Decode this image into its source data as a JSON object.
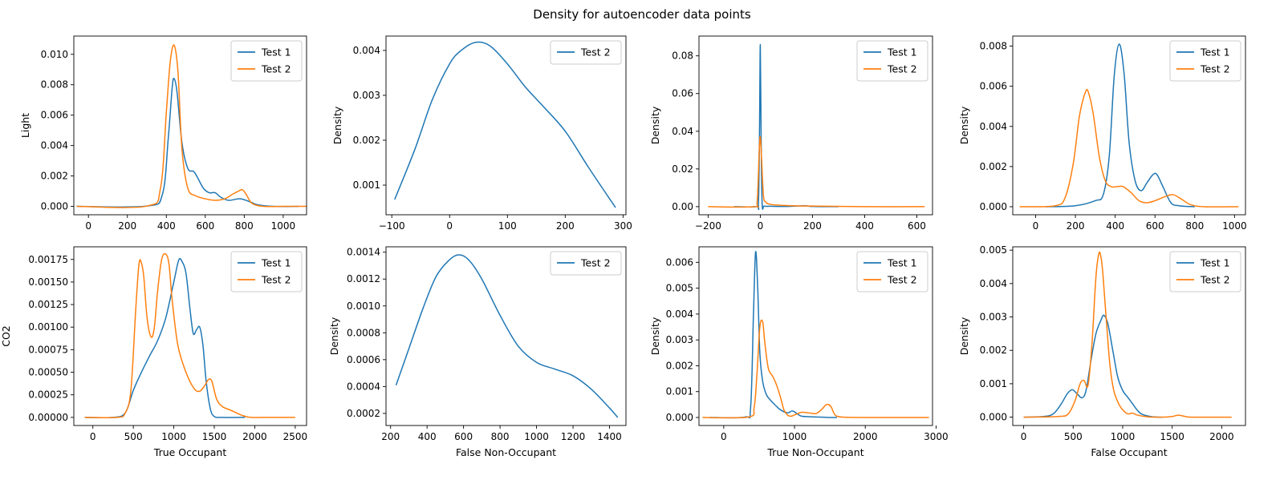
{
  "figure": {
    "title": "Density for autoencoder data points",
    "colors": {
      "test1": "#1f77b4",
      "test2": "#ff7f0e"
    }
  },
  "chart_data": [
    {
      "type": "line",
      "xlabel": "",
      "ylabel": "Light",
      "xlim": [
        -75,
        1120
      ],
      "ylim": [
        -0.00055,
        0.0112
      ],
      "xticks": [
        0,
        200,
        400,
        600,
        800,
        1000
      ],
      "yticks": [
        0.0,
        0.002,
        0.004,
        0.006,
        0.008,
        0.01
      ],
      "ytick_labels": [
        "0.000",
        "0.002",
        "0.004",
        "0.006",
        "0.008",
        "0.010"
      ],
      "legend": "top-right",
      "series": [
        {
          "name": "Test 1",
          "color": "#1f77b4",
          "x": [
            -60,
            300,
            380,
            410,
            430,
            440,
            455,
            480,
            510,
            540,
            560,
            590,
            620,
            650,
            680,
            720,
            780,
            830,
            870,
            950,
            1080
          ],
          "y": [
            0,
            2e-05,
            0.0008,
            0.0045,
            0.0078,
            0.0084,
            0.0075,
            0.0042,
            0.0025,
            0.0023,
            0.0019,
            0.0012,
            0.0009,
            0.0009,
            0.0006,
            0.0004,
            0.0005,
            0.0003,
            0.0001,
            0,
            0
          ]
        },
        {
          "name": "Test 2",
          "color": "#ff7f0e",
          "x": [
            -60,
            300,
            370,
            400,
            420,
            440,
            460,
            480,
            510,
            550,
            600,
            650,
            700,
            740,
            770,
            790,
            810,
            840,
            900,
            1000,
            1120
          ],
          "y": [
            0,
            2e-05,
            0.0012,
            0.0062,
            0.0095,
            0.0106,
            0.0088,
            0.0038,
            0.0012,
            0.0007,
            0.0005,
            0.0004,
            0.0005,
            0.0008,
            0.001,
            0.0011,
            0.0008,
            0.0002,
            0,
            0,
            0
          ]
        }
      ]
    },
    {
      "type": "line",
      "xlabel": "",
      "ylabel": "Density",
      "xlim": [
        -110,
        305
      ],
      "ylim": [
        0.00034,
        0.00432
      ],
      "xticks": [
        -100,
        0,
        100,
        200,
        300
      ],
      "yticks": [
        0.001,
        0.002,
        0.003,
        0.004
      ],
      "ytick_labels": [
        "0.001",
        "0.002",
        "0.003",
        "0.004"
      ],
      "legend": "top-right",
      "series": [
        {
          "name": "Test 2",
          "color": "#1f77b4",
          "x": [
            -95,
            -60,
            -30,
            0,
            20,
            45,
            70,
            100,
            130,
            160,
            200,
            240,
            287
          ],
          "y": [
            0.00068,
            0.0018,
            0.0029,
            0.0037,
            0.004,
            0.00418,
            0.0041,
            0.0037,
            0.0032,
            0.00278,
            0.0022,
            0.0014,
            0.0005
          ]
        }
      ]
    },
    {
      "type": "line",
      "xlabel": "",
      "ylabel": "Density",
      "xlim": [
        -235,
        660
      ],
      "ylim": [
        -0.0043,
        0.0905
      ],
      "xticks": [
        -200,
        0,
        200,
        400,
        600
      ],
      "yticks": [
        0.0,
        0.02,
        0.04,
        0.06,
        0.08
      ],
      "ytick_labels": [
        "0.00",
        "0.02",
        "0.04",
        "0.06",
        "0.08"
      ],
      "legend": "top-right",
      "series": [
        {
          "name": "Test 1",
          "color": "#1f77b4",
          "x": [
            -100,
            -15,
            -7,
            -3,
            0,
            3,
            7,
            15,
            40,
            100,
            170,
            200,
            300
          ],
          "y": [
            0,
            0,
            0.002,
            0.04,
            0.086,
            0.04,
            0.002,
            0.0003,
            0.0002,
            0.0001,
            0.0005,
            0.0001,
            0
          ]
        },
        {
          "name": "Test 2",
          "color": "#ff7f0e",
          "x": [
            -200,
            -25,
            -12,
            -4,
            0,
            5,
            12,
            20,
            40,
            100,
            200,
            400,
            630
          ],
          "y": [
            0,
            0,
            0.003,
            0.03,
            0.037,
            0.025,
            0.006,
            0.0025,
            0.0012,
            0.0006,
            0.0003,
            0,
            0
          ]
        }
      ]
    },
    {
      "type": "line",
      "xlabel": "",
      "ylabel": "Density",
      "xlim": [
        -115,
        1055
      ],
      "ylim": [
        -0.0004,
        0.0085
      ],
      "xticks": [
        0,
        200,
        400,
        600,
        800,
        1000
      ],
      "yticks": [
        0.0,
        0.002,
        0.004,
        0.006,
        0.008
      ],
      "ytick_labels": [
        "0.000",
        "0.002",
        "0.004",
        "0.006",
        "0.008"
      ],
      "legend": "top-right",
      "series": [
        {
          "name": "Test 1",
          "color": "#1f77b4",
          "x": [
            50,
            200,
            300,
            340,
            370,
            395,
            420,
            445,
            470,
            500,
            530,
            560,
            590,
            610,
            640,
            680,
            720,
            800
          ],
          "y": [
            0,
            5e-05,
            0.0003,
            0.0006,
            0.0025,
            0.0065,
            0.0081,
            0.0066,
            0.0032,
            0.0013,
            0.0008,
            0.0012,
            0.0016,
            0.0016,
            0.001,
            0.0002,
            5e-05,
            0
          ]
        },
        {
          "name": "Test 2",
          "color": "#ff7f0e",
          "x": [
            -80,
            100,
            150,
            190,
            220,
            250,
            265,
            290,
            320,
            350,
            380,
            410,
            440,
            480,
            520,
            560,
            600,
            650,
            690,
            730,
            780,
            850,
            1020
          ],
          "y": [
            0,
            5e-05,
            0.0005,
            0.0022,
            0.0045,
            0.0057,
            0.0057,
            0.0046,
            0.0025,
            0.0013,
            0.001,
            0.001,
            0.001,
            0.0007,
            0.0003,
            0.0002,
            0.0003,
            0.0005,
            0.0006,
            0.0004,
            0.0001,
            0,
            0
          ]
        }
      ]
    },
    {
      "type": "line",
      "xlabel": "True Occupant",
      "ylabel": "CO2",
      "xlim": [
        -235,
        2640
      ],
      "ylim": [
        -9e-05,
        0.00189
      ],
      "xticks": [
        0,
        500,
        1000,
        1500,
        2000,
        2500
      ],
      "yticks": [
        0,
        0.00025,
        0.0005,
        0.00075,
        0.001,
        0.00125,
        0.0015,
        0.00175
      ],
      "ytick_labels": [
        "0.00000",
        "0.00025",
        "0.00050",
        "0.00075",
        "0.00100",
        "0.00125",
        "0.00150",
        "0.00175"
      ],
      "legend": "top-right",
      "series": [
        {
          "name": "Test 1",
          "color": "#1f77b4",
          "x": [
            -100,
            250,
            400,
            500,
            600,
            700,
            800,
            900,
            1000,
            1060,
            1100,
            1150,
            1200,
            1240,
            1280,
            1320,
            1360,
            1400,
            1450,
            1500,
            1600,
            1880
          ],
          "y": [
            0,
            0,
            5e-05,
            0.0003,
            0.0005,
            0.00068,
            0.00085,
            0.0011,
            0.0015,
            0.00174,
            0.00173,
            0.0016,
            0.0012,
            0.00093,
            0.00097,
            0.001,
            0.0008,
            0.0004,
            0.0001,
            1e-05,
            0,
            0
          ]
        },
        {
          "name": "Test 2",
          "color": "#ff7f0e",
          "x": [
            -100,
            300,
            400,
            470,
            530,
            570,
            600,
            630,
            670,
            720,
            760,
            800,
            850,
            900,
            940,
            980,
            1050,
            1150,
            1250,
            1320,
            1380,
            1430,
            1470,
            1530,
            1600,
            1700,
            1850,
            1950,
            2100,
            2500
          ],
          "y": [
            0,
            0,
            5e-05,
            0.0003,
            0.0012,
            0.0017,
            0.00171,
            0.00155,
            0.0011,
            0.00089,
            0.001,
            0.0014,
            0.00175,
            0.00181,
            0.0017,
            0.0013,
            0.0008,
            0.0005,
            0.00032,
            0.00029,
            0.00035,
            0.00042,
            0.0004,
            0.0002,
            0.00012,
            8e-05,
            2e-05,
            0,
            0,
            0
          ]
        }
      ]
    },
    {
      "type": "line",
      "xlabel": "False Non-Occupant",
      "ylabel": "Density",
      "xlim": [
        175,
        1490
      ],
      "ylim": [
        0.00011,
        0.00144
      ],
      "xticks": [
        200,
        400,
        600,
        800,
        1000,
        1200,
        1400
      ],
      "yticks": [
        0.0002,
        0.0004,
        0.0006,
        0.0008,
        0.001,
        0.0012,
        0.0014
      ],
      "ytick_labels": [
        "0.0002",
        "0.0004",
        "0.0006",
        "0.0008",
        "0.0010",
        "0.0012",
        "0.0014"
      ],
      "legend": "top-right",
      "series": [
        {
          "name": "Test 2",
          "color": "#1f77b4",
          "x": [
            230,
            300,
            380,
            450,
            520,
            575,
            630,
            700,
            800,
            900,
            1000,
            1100,
            1200,
            1300,
            1400,
            1445
          ],
          "y": [
            0.00041,
            0.00068,
            0.00099,
            0.00122,
            0.00134,
            0.00138,
            0.00134,
            0.0012,
            0.00093,
            0.0007,
            0.00058,
            0.00053,
            0.00048,
            0.00038,
            0.00024,
            0.00017
          ]
        }
      ]
    },
    {
      "type": "line",
      "xlabel": "True Non-Occupant",
      "ylabel": "Density",
      "xlim": [
        -350,
        2950
      ],
      "ylim": [
        -0.00031,
        0.0066
      ],
      "xticks": [
        0,
        1000,
        2000,
        3000
      ],
      "yticks": [
        0,
        0.001,
        0.002,
        0.003,
        0.004,
        0.005,
        0.006
      ],
      "ytick_labels": [
        "0.000",
        "0.001",
        "0.002",
        "0.003",
        "0.004",
        "0.005",
        "0.006"
      ],
      "legend": "top-right",
      "series": [
        {
          "name": "Test 1",
          "color": "#1f77b4",
          "x": [
            -200,
            300,
            380,
            420,
            450,
            480,
            510,
            550,
            600,
            650,
            720,
            800,
            900,
            960,
            1000,
            1050,
            1100,
            1200,
            1300,
            1400,
            1500,
            1600
          ],
          "y": [
            0,
            2e-05,
            0.0004,
            0.004,
            0.0064,
            0.005,
            0.0025,
            0.0014,
            0.0009,
            0.0007,
            0.0005,
            0.0003,
            0.00018,
            0.00025,
            0.00022,
            0.00012,
            5e-05,
            3e-05,
            2e-05,
            1e-05,
            0,
            0
          ]
        },
        {
          "name": "Test 2",
          "color": "#ff7f0e",
          "x": [
            -300,
            350,
            430,
            470,
            510,
            550,
            580,
            630,
            690,
            740,
            800,
            850,
            900,
            950,
            1000,
            1100,
            1200,
            1300,
            1380,
            1440,
            1480,
            1520,
            1560,
            1600,
            1700,
            2000,
            2900
          ],
          "y": [
            0,
            2e-05,
            0.0004,
            0.0017,
            0.0035,
            0.0037,
            0.0029,
            0.0019,
            0.0016,
            0.0013,
            0.0008,
            0.0003,
            0.0001,
            5e-05,
            0.0001,
            0.0002,
            0.00018,
            0.00015,
            0.0003,
            0.00048,
            0.0005,
            0.0004,
            0.00015,
            5e-05,
            1e-05,
            0,
            0
          ]
        }
      ]
    },
    {
      "type": "line",
      "xlabel": "False Occupant",
      "ylabel": "Density",
      "xlim": [
        -110,
        2240
      ],
      "ylim": [
        -0.00025,
        0.0051
      ],
      "xticks": [
        0,
        500,
        1000,
        1500,
        2000
      ],
      "yticks": [
        0,
        0.001,
        0.002,
        0.003,
        0.004,
        0.005
      ],
      "ytick_labels": [
        "0.000",
        "0.001",
        "0.002",
        "0.003",
        "0.004",
        "0.005"
      ],
      "legend": "top-right",
      "series": [
        {
          "name": "Test 1",
          "color": "#1f77b4",
          "x": [
            0,
            200,
            300,
            380,
            440,
            490,
            540,
            590,
            630,
            680,
            730,
            780,
            810,
            850,
            900,
            950,
            1000,
            1050,
            1100,
            1150,
            1200,
            1300,
            1400
          ],
          "y": [
            0,
            2e-05,
            0.0001,
            0.0004,
            0.0007,
            0.00082,
            0.0007,
            0.00058,
            0.0008,
            0.0017,
            0.0025,
            0.0029,
            0.00305,
            0.0028,
            0.002,
            0.0012,
            0.0008,
            0.0006,
            0.0004,
            0.0002,
            8e-05,
            1e-05,
            0
          ]
        },
        {
          "name": "Test 2",
          "color": "#ff7f0e",
          "x": [
            0,
            350,
            450,
            520,
            570,
            610,
            650,
            690,
            730,
            760,
            780,
            800,
            830,
            870,
            910,
            960,
            1000,
            1050,
            1100,
            1150,
            1250,
            1400,
            1500,
            1560,
            1620,
            1700,
            2100
          ],
          "y": [
            0,
            2e-05,
            0.0001,
            0.0005,
            0.001,
            0.0011,
            0.00095,
            0.0022,
            0.0042,
            0.0049,
            0.0048,
            0.0043,
            0.0031,
            0.0016,
            0.0008,
            0.0004,
            0.00022,
            0.0001,
            0.00012,
            6e-05,
            1e-05,
            0,
            2e-05,
            6e-05,
            3e-05,
            0,
            0
          ]
        }
      ]
    }
  ]
}
